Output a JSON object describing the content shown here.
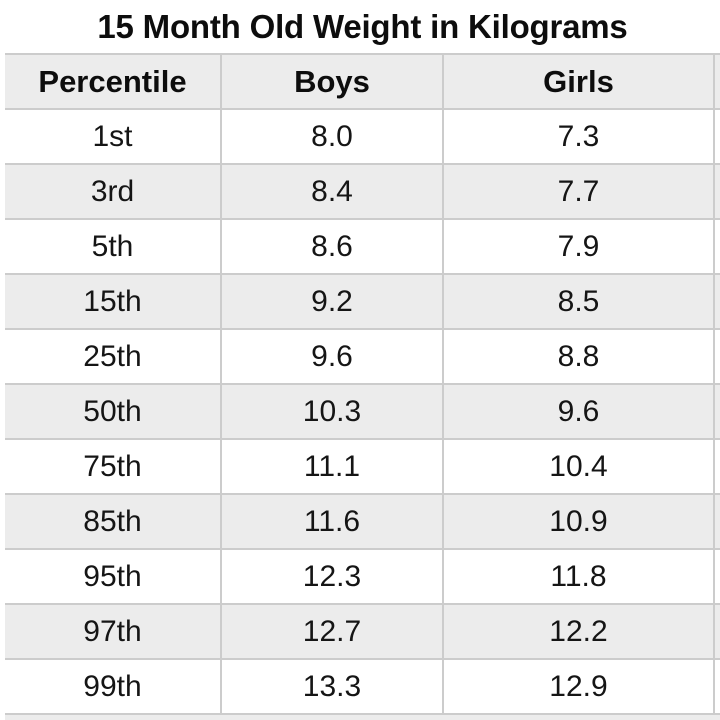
{
  "title": "15 Month Old Weight in Kilograms",
  "table": {
    "columns": [
      "Percentile",
      "Boys",
      "Girls"
    ],
    "rows": [
      {
        "percentile": "1st",
        "boys": "8.0",
        "girls": "7.3"
      },
      {
        "percentile": "3rd",
        "boys": "8.4",
        "girls": "7.7"
      },
      {
        "percentile": "5th",
        "boys": "8.6",
        "girls": "7.9"
      },
      {
        "percentile": "15th",
        "boys": "9.2",
        "girls": "8.5"
      },
      {
        "percentile": "25th",
        "boys": "9.6",
        "girls": "8.8"
      },
      {
        "percentile": "50th",
        "boys": "10.3",
        "girls": "9.6"
      },
      {
        "percentile": "75th",
        "boys": "11.1",
        "girls": "10.4"
      },
      {
        "percentile": "85th",
        "boys": "11.6",
        "girls": "10.9"
      },
      {
        "percentile": "95th",
        "boys": "12.3",
        "girls": "11.8"
      },
      {
        "percentile": "97th",
        "boys": "12.7",
        "girls": "12.2"
      },
      {
        "percentile": "99th",
        "boys": "13.3",
        "girls": "12.9"
      }
    ]
  },
  "colors": {
    "background": "#ffffff",
    "stripe": "#ececec",
    "divider": "#cccccc",
    "text": "#111111"
  },
  "chart_data": {
    "type": "table",
    "title": "15 Month Old Weight in Kilograms",
    "columns": [
      "Percentile",
      "Boys",
      "Girls"
    ],
    "rows": [
      [
        "1st",
        8.0,
        7.3
      ],
      [
        "3rd",
        8.4,
        7.7
      ],
      [
        "5th",
        8.6,
        7.9
      ],
      [
        "15th",
        9.2,
        8.5
      ],
      [
        "25th",
        9.6,
        8.8
      ],
      [
        "50th",
        10.3,
        9.6
      ],
      [
        "75th",
        11.1,
        10.4
      ],
      [
        "85th",
        11.6,
        10.9
      ],
      [
        "95th",
        12.3,
        11.8
      ],
      [
        "97th",
        12.7,
        12.2
      ],
      [
        "99th",
        13.3,
        12.9
      ]
    ],
    "units": "kilograms",
    "layout": {
      "striped": true,
      "header_background": "#ececec",
      "grid": true
    }
  }
}
